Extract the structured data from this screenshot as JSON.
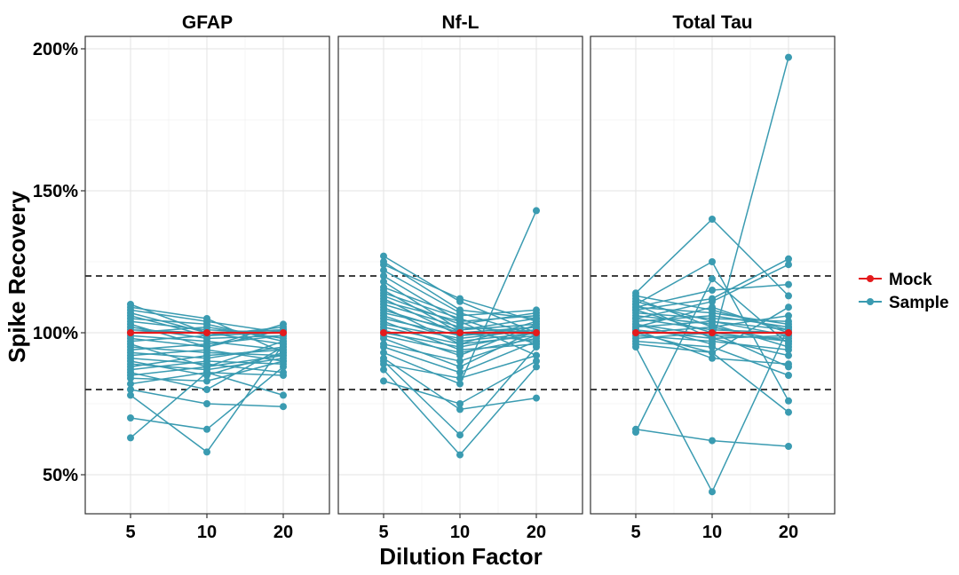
{
  "chart_data": {
    "type": "line",
    "xlabel": "Dilution Factor",
    "ylabel": "Spike Recovery",
    "x_categories": [
      "5",
      "10",
      "20"
    ],
    "y_ticks": [
      "50%",
      "100%",
      "150%",
      "200%"
    ],
    "ylim": [
      36,
      207
    ],
    "grid": true,
    "reference_lines": [
      80,
      120
    ],
    "legend": {
      "position": "right",
      "entries": [
        {
          "name": "Mock",
          "color": "#e41a1c"
        },
        {
          "name": "Sample",
          "color": "#3a9bb1"
        }
      ]
    },
    "panels": [
      {
        "title": "GFAP",
        "mock": [
          100,
          100,
          100
        ],
        "samples": [
          [
            63,
            86,
            85
          ],
          [
            70,
            66,
            88
          ],
          [
            78,
            58,
            96
          ],
          [
            80,
            75,
            74
          ],
          [
            82,
            86,
            78
          ],
          [
            84,
            83,
            90
          ],
          [
            85,
            88,
            92
          ],
          [
            86,
            80,
            95
          ],
          [
            87,
            90,
            89
          ],
          [
            88,
            92,
            94
          ],
          [
            89,
            87,
            91
          ],
          [
            90,
            85,
            93
          ],
          [
            91,
            89,
            86
          ],
          [
            92,
            94,
            90
          ],
          [
            93,
            91,
            95
          ],
          [
            94,
            96,
            99
          ],
          [
            95,
            93,
            92
          ],
          [
            96,
            88,
            97
          ],
          [
            97,
            99,
            100
          ],
          [
            98,
            95,
            101
          ],
          [
            99,
            97,
            94
          ],
          [
            100,
            102,
            98
          ],
          [
            101,
            100,
            96
          ],
          [
            102,
            98,
            99
          ],
          [
            103,
            95,
            103
          ],
          [
            104,
            101,
            100
          ],
          [
            105,
            103,
            97
          ],
          [
            106,
            99,
            102
          ],
          [
            107,
            100,
            101
          ],
          [
            108,
            104,
            100
          ],
          [
            109,
            105,
            93
          ],
          [
            110,
            100,
            101
          ]
        ]
      },
      {
        "title": "Nf-L",
        "mock": [
          100,
          100,
          100
        ],
        "samples": [
          [
            83,
            75,
            90
          ],
          [
            87,
            57,
            88
          ],
          [
            89,
            84,
            92
          ],
          [
            90,
            64,
            95
          ],
          [
            91,
            73,
            77
          ],
          [
            93,
            82,
            143
          ],
          [
            95,
            86,
            97
          ],
          [
            96,
            90,
            99
          ],
          [
            98,
            88,
            101
          ],
          [
            99,
            93,
            98
          ],
          [
            100,
            95,
            100
          ],
          [
            101,
            92,
            103
          ],
          [
            102,
            96,
            99
          ],
          [
            103,
            98,
            101
          ],
          [
            104,
            94,
            96
          ],
          [
            105,
            99,
            102
          ],
          [
            106,
            97,
            100
          ],
          [
            107,
            101,
            105
          ],
          [
            108,
            100,
            97
          ],
          [
            109,
            96,
            104
          ],
          [
            110,
            102,
            100
          ],
          [
            111,
            104,
            106
          ],
          [
            112,
            99,
            101
          ],
          [
            113,
            103,
            107
          ],
          [
            114,
            105,
            96
          ],
          [
            115,
            100,
            102
          ],
          [
            116,
            106,
            108
          ],
          [
            118,
            101,
            103
          ],
          [
            120,
            104,
            92
          ],
          [
            122,
            107,
            99
          ],
          [
            124,
            112,
            104
          ],
          [
            125,
            108,
            105
          ],
          [
            127,
            111,
            100
          ]
        ]
      },
      {
        "title": "Total Tau",
        "mock": [
          100,
          100,
          100
        ],
        "samples": [
          [
            65,
            119,
            96
          ],
          [
            66,
            62,
            60
          ],
          [
            95,
            44,
            102
          ],
          [
            96,
            93,
            72
          ],
          [
            97,
            95,
            85
          ],
          [
            98,
            100,
            88
          ],
          [
            99,
            97,
            94
          ],
          [
            100,
            102,
            97
          ],
          [
            101,
            98,
            99
          ],
          [
            102,
            104,
            101
          ],
          [
            103,
            99,
            98
          ],
          [
            104,
            106,
            102
          ],
          [
            105,
            101,
            100
          ],
          [
            106,
            103,
            95
          ],
          [
            107,
            105,
            104
          ],
          [
            108,
            100,
            97
          ],
          [
            109,
            107,
            103
          ],
          [
            110,
            98,
            92
          ],
          [
            111,
            104,
            99
          ],
          [
            112,
            102,
            106
          ],
          [
            113,
            108,
            101
          ],
          [
            114,
            140,
            113
          ],
          [
            110,
            125,
            76
          ],
          [
            109,
            115,
            117
          ],
          [
            108,
            112,
            126
          ],
          [
            105,
            111,
            124
          ],
          [
            101,
            91,
            89
          ],
          [
            103,
            96,
            197
          ],
          [
            100,
            93,
            109
          ],
          [
            102,
            109,
            100
          ]
        ]
      }
    ]
  }
}
